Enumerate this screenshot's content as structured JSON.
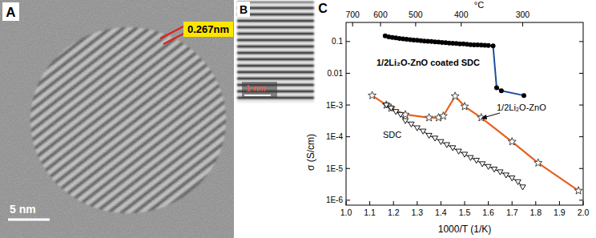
{
  "panels": [
    {
      "label": "A",
      "annotation": "0.267nm",
      "scale_bar": "5 nm"
    },
    {
      "label": "B",
      "scale_bar": "1 nm"
    }
  ],
  "chart_data": {
    "type": "line",
    "label": "C",
    "log": "y",
    "grid": false,
    "x_label": "1000/T (1/K)",
    "y_label": "σ (S/cm)",
    "x2_label": "°C",
    "xlim": [
      1.0,
      2.0
    ],
    "xticks": [
      {
        "value": 1.0,
        "label": "1.0"
      },
      1.1,
      1.2,
      1.3,
      1.4,
      1.5,
      1.6,
      1.7,
      1.8,
      1.9,
      {
        "value": 2.0,
        "label": "2.0"
      }
    ],
    "x2ticks": [
      {
        "value": 1.0276,
        "label": "700"
      },
      {
        "value": 1.1453,
        "label": "600"
      },
      {
        "value": 1.2935,
        "label": "500"
      },
      {
        "value": 1.4856,
        "label": "400"
      },
      {
        "value": 1.7448,
        "label": "300"
      }
    ],
    "ylim": [
      7e-07,
      0.4
    ],
    "yticks": [
      0.1,
      0.01,
      {
        "value": 0.001,
        "label": "1E-3"
      },
      {
        "value": 0.0001,
        "label": "1E-4"
      },
      {
        "value": 1e-05,
        "label": "1E-5"
      },
      {
        "value": 1e-06,
        "label": "1E-6"
      }
    ],
    "series": [
      {
        "name": "1/2Li₂O-ZnO coated SDC",
        "color": "#000000",
        "marker": "circle",
        "line_style": "solid",
        "x": [
          1.165,
          1.18,
          1.195,
          1.21,
          1.225,
          1.24,
          1.255,
          1.27,
          1.285,
          1.3,
          1.315,
          1.33,
          1.345,
          1.36,
          1.375,
          1.39,
          1.405,
          1.42,
          1.435,
          1.45,
          1.465,
          1.48,
          1.495,
          1.51,
          1.525,
          1.54,
          1.555,
          1.57,
          1.585,
          1.6,
          1.62,
          1.635,
          1.655,
          1.75
        ],
        "values": [
          0.15,
          0.14,
          0.135,
          0.13,
          0.125,
          0.122,
          0.118,
          0.115,
          0.112,
          0.11,
          0.107,
          0.104,
          0.102,
          0.1,
          0.098,
          0.096,
          0.094,
          0.092,
          0.09,
          0.088,
          0.087,
          0.085,
          0.084,
          0.082,
          0.08,
          0.079,
          0.078,
          0.077,
          0.076,
          0.075,
          0.073,
          0.0035,
          0.0028,
          0.002
        ],
        "colors": [
          "#000000",
          "#000000",
          "#000000",
          "#000000",
          "#000000",
          "#000000",
          "#000000",
          "#000000",
          "#000000",
          "#000000",
          "#000000",
          "#000000",
          "#000000",
          "#000000",
          "#000000",
          "#000000",
          "#000000",
          "#000000",
          "#000000",
          "#000000",
          "#000000",
          "#000000",
          "#000000",
          "#000000",
          "#000000",
          "#000000",
          "#000000",
          "#000000",
          "#000000",
          "#000000",
          "#1f4e9c",
          "#1f4e9c",
          "#1f4e9c",
          "#1f4e9c"
        ]
      },
      {
        "name": "1/2Li₂O-ZnO",
        "color": "#e8601c",
        "marker": "star",
        "line_style": "solid",
        "x": [
          1.11,
          1.17,
          1.19,
          1.25,
          1.35,
          1.39,
          1.41,
          1.46,
          1.5,
          1.57,
          1.7,
          1.81,
          1.98
        ],
        "values": [
          0.002,
          0.001,
          0.0008,
          0.0005,
          0.0004,
          0.0004,
          0.00045,
          0.0019,
          0.0009,
          0.0004,
          7e-05,
          1.5e-05,
          2e-06
        ]
      },
      {
        "name": "SDC",
        "color": "#000000",
        "marker": "triangle",
        "line_style": "solid",
        "x": [
          1.17,
          1.19,
          1.21,
          1.23,
          1.25,
          1.275,
          1.3,
          1.325,
          1.35,
          1.375,
          1.4,
          1.425,
          1.45,
          1.475,
          1.5,
          1.525,
          1.55,
          1.575,
          1.6,
          1.625,
          1.65,
          1.675,
          1.7,
          1.725,
          1.745
        ],
        "values": [
          0.001,
          0.0008,
          0.00062,
          0.0005,
          0.00032,
          0.00025,
          0.00019,
          0.00015,
          0.00011,
          9e-05,
          7e-05,
          5.6e-05,
          4.5e-05,
          3.5e-05,
          2.8e-05,
          2.2e-05,
          1.8e-05,
          1.4e-05,
          1.15e-05,
          9.5e-06,
          7.8e-06,
          6.2e-06,
          5e-06,
          3.8e-06,
          2.6e-06
        ]
      }
    ]
  }
}
